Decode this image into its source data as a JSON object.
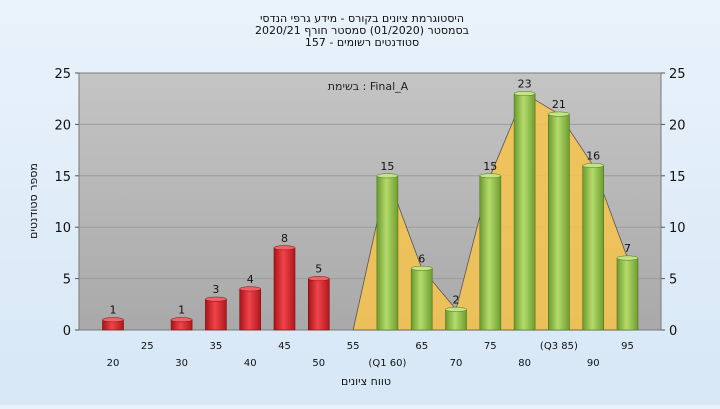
{
  "chart_data": {
    "type": "bar",
    "title_lines": [
      "היסטוגרמת ציונים בקורס - מידע גרפי הנדסי",
      "בסמסטר  (01/2020)  סמסטר חורף 2020/21",
      "סטודנטים רשומים - 157"
    ],
    "annotation": "בשימת : Final_A",
    "xlabel": "טווח ציונים",
    "ylabel": "מספר סטודנטים",
    "ylim": [
      0,
      25
    ],
    "y_ticks": [
      0,
      5,
      10,
      15,
      20,
      25
    ],
    "grid": true,
    "x_ticks_upper": [
      "25",
      "35",
      "45",
      "55",
      "65",
      "75",
      "(Q3 85)",
      "95"
    ],
    "x_ticks_lower": [
      "20",
      "30",
      "40",
      "50",
      "(Q1 60)",
      "70",
      "80",
      "90"
    ],
    "bins": [
      20,
      25,
      30,
      35,
      40,
      45,
      50,
      55,
      60,
      65,
      70,
      75,
      80,
      85,
      90,
      95
    ],
    "values": [
      1,
      0,
      1,
      3,
      4,
      8,
      5,
      0,
      15,
      6,
      2,
      15,
      23,
      21,
      16,
      7
    ],
    "bar_colors": [
      "red",
      "red",
      "red",
      "red",
      "red",
      "red",
      "red",
      "none",
      "green",
      "green",
      "green",
      "green",
      "green",
      "green",
      "green",
      "green"
    ],
    "colors": {
      "fail_bar": "#d9232a",
      "pass_bar": "#8fc04a",
      "iqr_area": "#f7c34b",
      "plot_bg": "#b3b3b3",
      "grid": "#9c9c9c"
    }
  }
}
